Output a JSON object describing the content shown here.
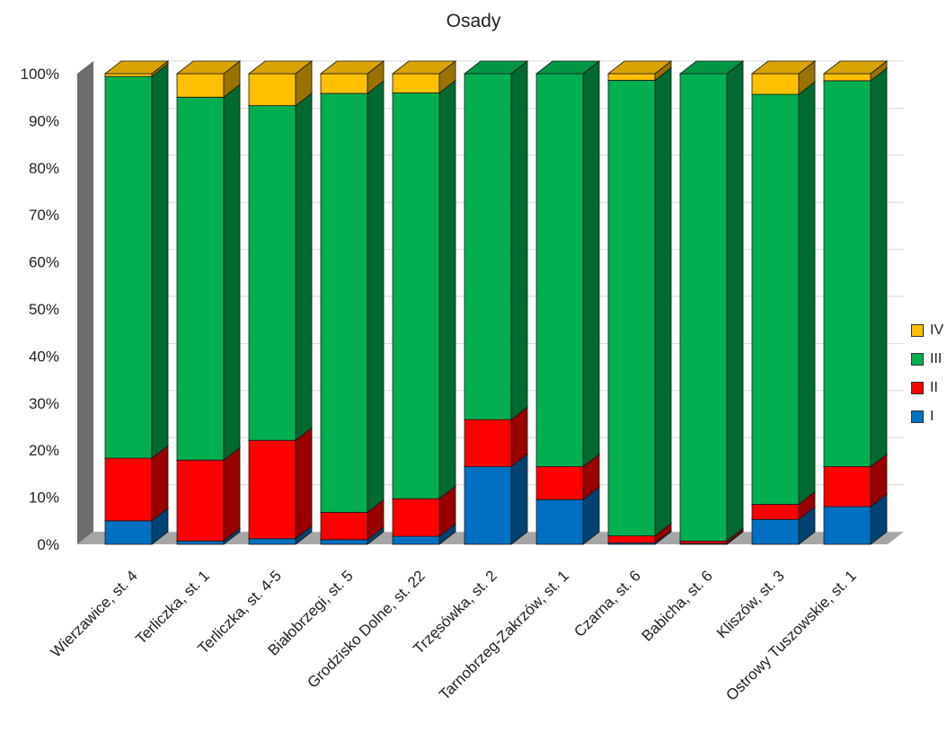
{
  "chart_data": {
    "type": "bar",
    "stacked": true,
    "percent_stacked": true,
    "three_d": true,
    "title": "Osady",
    "xlabel": "",
    "ylabel": "",
    "ylim": [
      0,
      100
    ],
    "yticks": [
      "0%",
      "10%",
      "20%",
      "30%",
      "40%",
      "50%",
      "60%",
      "70%",
      "80%",
      "90%",
      "100%"
    ],
    "grid": true,
    "legend_position": "right",
    "categories": [
      "Wierzawice, st. 4",
      "Terliczka, st. 1",
      "Terliczka, st. 4-5",
      "Białobrzegi, st. 5",
      "Grodzisko Dolne, st. 22",
      "Trzęsówka, st. 2",
      "Tarnobrzeg-Zakrzów, st. 1",
      "Czarna, st. 6",
      "Babicha, st. 6",
      "Kliszów, st. 3",
      "Ostrowy Tuszowskie, st. 1"
    ],
    "series": [
      {
        "name": "I",
        "color": "#0070C0",
        "values": [
          5,
          0.7,
          1.2,
          1,
          1.7,
          16.5,
          9.5,
          0.3,
          0.2,
          5.3,
          8
        ]
      },
      {
        "name": "II",
        "color": "#FF0000",
        "values": [
          13.3,
          17.2,
          20.9,
          5.8,
          8,
          10,
          7,
          1.5,
          0.5,
          3.2,
          8.5
        ]
      },
      {
        "name": "III",
        "color": "#00B050",
        "values": [
          81.1,
          77.1,
          71.1,
          89,
          86.2,
          73.5,
          83.5,
          96.8,
          99.3,
          87.1,
          82
        ]
      },
      {
        "name": "IV",
        "color": "#FFC000",
        "values": [
          0.6,
          5,
          6.8,
          4.2,
          4.1,
          0,
          0,
          1.4,
          0,
          4.4,
          1.5
        ]
      }
    ]
  }
}
